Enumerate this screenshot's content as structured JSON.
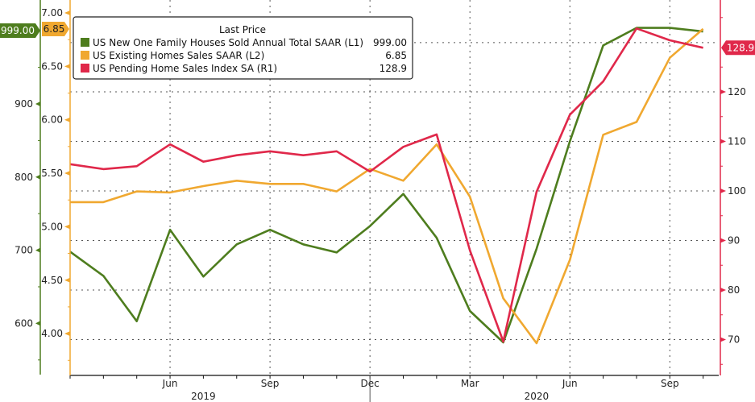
{
  "chart_data": {
    "type": "line",
    "title": "",
    "legend": {
      "title": "Last Price",
      "placement": "top-left",
      "entries": [
        {
          "label": "US New One Family Houses Sold Annual Total SAAR  (L1)",
          "value": "999.00",
          "color": "#4e7d1e"
        },
        {
          "label": "US Existing Homes Sales SAAR  (L2)",
          "value": "6.85",
          "color": "#f0a830"
        },
        {
          "label": "US Pending Home Sales Index SA  (R1)",
          "value": "128.9",
          "color": "#e0284a"
        }
      ]
    },
    "x": [
      "2019-03",
      "2019-04",
      "2019-05",
      "2019-06",
      "2019-07",
      "2019-08",
      "2019-09",
      "2019-10",
      "2019-11",
      "2019-12",
      "2020-01",
      "2020-02",
      "2020-03",
      "2020-04",
      "2020-05",
      "2020-06",
      "2020-07",
      "2020-08",
      "2020-09",
      "2020-10"
    ],
    "x_ticks": [
      {
        "label": "Jun",
        "x": "2019-06"
      },
      {
        "label": "Sep",
        "x": "2019-09"
      },
      {
        "label": "Dec",
        "x": "2019-12"
      },
      {
        "label": "Mar",
        "x": "2020-03"
      },
      {
        "label": "Jun",
        "x": "2020-06"
      },
      {
        "label": "Sep",
        "x": "2020-09"
      }
    ],
    "year_labels": [
      {
        "label": "2019",
        "x": "2019-07"
      },
      {
        "label": "2020",
        "x": "2020-05"
      }
    ],
    "series": [
      {
        "name": "US New One Family Houses Sold Annual Total SAAR",
        "axis": "L1",
        "color": "#4e7d1e",
        "last_value": "999.00",
        "values": [
          698,
          665,
          603,
          728,
          664,
          708,
          728,
          708,
          697,
          733,
          777,
          717,
          617,
          574,
          702,
          849,
          980,
          1004,
          1004,
          999
        ]
      },
      {
        "name": "US Existing Homes Sales SAAR",
        "axis": "L2",
        "color": "#f0a830",
        "last_value": "6.85",
        "values": [
          5.23,
          5.23,
          5.33,
          5.32,
          5.38,
          5.43,
          5.4,
          5.4,
          5.33,
          5.54,
          5.43,
          5.77,
          5.28,
          4.33,
          3.91,
          4.69,
          5.86,
          5.98,
          6.58,
          6.85
        ]
      },
      {
        "name": "US Pending Home Sales Index SA",
        "axis": "R1",
        "color": "#e0284a",
        "last_value": "128.9",
        "values": [
          105.4,
          104.4,
          105.0,
          109.4,
          105.9,
          107.2,
          108.0,
          107.2,
          108.0,
          103.9,
          108.9,
          111.4,
          88.0,
          69.6,
          99.8,
          115.4,
          122.1,
          132.8,
          130.4,
          128.9
        ]
      }
    ],
    "axes": {
      "L1": {
        "ticks": [
          600,
          700,
          800,
          900
        ],
        "tick_labels": [
          "600",
          "700",
          "800",
          "900"
        ],
        "range": [
          545,
          1040
        ],
        "color": "#4e7d1e"
      },
      "L2": {
        "ticks": [
          4.0,
          4.5,
          5.0,
          5.5,
          6.0,
          6.5,
          7.0
        ],
        "tick_labels": [
          "4.00",
          "4.50",
          "5.00",
          "5.50",
          "6.00",
          "6.50",
          "7.00"
        ],
        "range": [
          3.62,
          7.12
        ],
        "color": "#f0a830"
      },
      "R1": {
        "ticks": [
          70,
          80,
          90,
          100,
          110,
          120
        ],
        "tick_labels": [
          "70",
          "80",
          "90",
          "100",
          "110",
          "120"
        ],
        "range": [
          63,
          138
        ],
        "color": "#e0284a"
      }
    },
    "grid": true
  }
}
